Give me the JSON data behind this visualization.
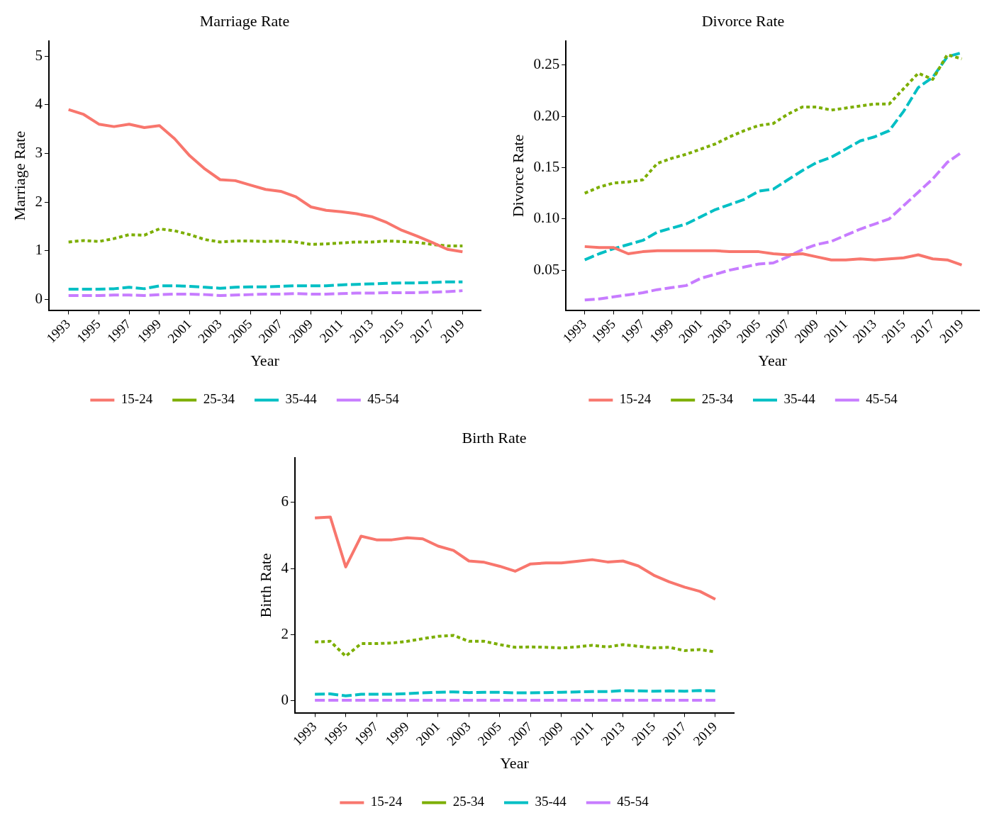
{
  "chart_data": [
    {
      "type": "line",
      "title": "Marriage Rate",
      "xlabel": "Year",
      "ylabel": "Marriage Rate",
      "legend": "bottom",
      "x": [
        1993,
        1994,
        1995,
        1996,
        1997,
        1998,
        1999,
        2000,
        2001,
        2002,
        2003,
        2004,
        2005,
        2006,
        2007,
        2008,
        2009,
        2010,
        2011,
        2012,
        2013,
        2014,
        2015,
        2016,
        2017,
        2018,
        2019
      ],
      "xlim": [
        1991.7,
        2020.2
      ],
      "xticks": [
        1993,
        1995,
        1997,
        1999,
        2001,
        2003,
        2005,
        2007,
        2009,
        2011,
        2013,
        2015,
        2017,
        2019
      ],
      "ylim": [
        -0.22,
        5.3
      ],
      "yticks": [
        0,
        1,
        2,
        3,
        4,
        5
      ],
      "series": [
        {
          "name": "15-24",
          "color": "#f8766d",
          "line_style": "solid",
          "values": [
            3.9,
            3.8,
            3.6,
            3.55,
            3.6,
            3.53,
            3.57,
            3.3,
            2.95,
            2.68,
            2.46,
            2.44,
            2.35,
            2.26,
            2.22,
            2.11,
            1.9,
            1.83,
            1.8,
            1.76,
            1.7,
            1.58,
            1.42,
            1.3,
            1.17,
            1.03,
            0.98
          ]
        },
        {
          "name": "25-34",
          "color": "#7cae00",
          "line_style": "dotted",
          "values": [
            1.18,
            1.21,
            1.19,
            1.25,
            1.33,
            1.32,
            1.45,
            1.41,
            1.33,
            1.23,
            1.18,
            1.2,
            1.2,
            1.19,
            1.2,
            1.18,
            1.13,
            1.14,
            1.16,
            1.18,
            1.18,
            1.2,
            1.19,
            1.17,
            1.13,
            1.1,
            1.1
          ]
        },
        {
          "name": "35-44",
          "color": "#00bfc4",
          "line_style": "dashed",
          "values": [
            0.21,
            0.21,
            0.21,
            0.22,
            0.25,
            0.22,
            0.28,
            0.28,
            0.27,
            0.25,
            0.23,
            0.25,
            0.26,
            0.26,
            0.27,
            0.28,
            0.28,
            0.28,
            0.3,
            0.31,
            0.32,
            0.33,
            0.34,
            0.34,
            0.35,
            0.36,
            0.36
          ]
        },
        {
          "name": "45-54",
          "color": "#c77cff",
          "line_style": "dashed",
          "values": [
            0.08,
            0.08,
            0.08,
            0.09,
            0.09,
            0.08,
            0.1,
            0.11,
            0.11,
            0.1,
            0.08,
            0.09,
            0.1,
            0.11,
            0.11,
            0.12,
            0.11,
            0.11,
            0.12,
            0.13,
            0.13,
            0.14,
            0.14,
            0.14,
            0.15,
            0.16,
            0.18
          ]
        }
      ]
    },
    {
      "type": "line",
      "title": "Divorce Rate",
      "xlabel": "Year",
      "ylabel": "Divorce Rate",
      "legend": "bottom",
      "x": [
        1993,
        1994,
        1995,
        1996,
        1997,
        1998,
        1999,
        2000,
        2001,
        2002,
        2003,
        2004,
        2005,
        2006,
        2007,
        2008,
        2009,
        2010,
        2011,
        2012,
        2013,
        2014,
        2015,
        2016,
        2017,
        2018,
        2019
      ],
      "xlim": [
        1991.7,
        2020.2
      ],
      "xticks": [
        1993,
        1995,
        1997,
        1999,
        2001,
        2003,
        2005,
        2007,
        2009,
        2011,
        2013,
        2015,
        2017,
        2019
      ],
      "ylim": [
        0.011,
        0.273
      ],
      "yticks": [
        {
          "value": 0.05,
          "label": "0.05"
        },
        {
          "value": 0.1,
          "label": "0.10"
        },
        {
          "value": 0.15,
          "label": "0.15"
        },
        {
          "value": 0.2,
          "label": "0.20"
        },
        {
          "value": 0.25,
          "label": "0.25"
        }
      ],
      "series": [
        {
          "name": "15-24",
          "color": "#f8766d",
          "line_style": "solid",
          "values": [
            0.073,
            0.072,
            0.072,
            0.066,
            0.068,
            0.069,
            0.069,
            0.069,
            0.069,
            0.069,
            0.068,
            0.068,
            0.068,
            0.066,
            0.065,
            0.066,
            0.063,
            0.06,
            0.06,
            0.061,
            0.06,
            0.061,
            0.062,
            0.065,
            0.061,
            0.06,
            0.055
          ]
        },
        {
          "name": "25-34",
          "color": "#7cae00",
          "line_style": "dotted",
          "values": [
            0.125,
            0.131,
            0.135,
            0.136,
            0.138,
            0.154,
            0.159,
            0.163,
            0.168,
            0.173,
            0.18,
            0.186,
            0.191,
            0.193,
            0.202,
            0.209,
            0.209,
            0.206,
            0.208,
            0.21,
            0.212,
            0.212,
            0.227,
            0.242,
            0.236,
            0.26,
            0.256
          ]
        },
        {
          "name": "35-44",
          "color": "#00bfc4",
          "line_style": "dashed",
          "values": [
            0.06,
            0.066,
            0.071,
            0.075,
            0.079,
            0.087,
            0.091,
            0.095,
            0.102,
            0.109,
            0.114,
            0.119,
            0.127,
            0.129,
            0.138,
            0.147,
            0.155,
            0.16,
            0.168,
            0.176,
            0.18,
            0.186,
            0.205,
            0.228,
            0.238,
            0.258,
            0.262
          ]
        },
        {
          "name": "45-54",
          "color": "#c77cff",
          "line_style": "dashed",
          "values": [
            0.021,
            0.022,
            0.024,
            0.026,
            0.028,
            0.031,
            0.033,
            0.035,
            0.042,
            0.046,
            0.05,
            0.053,
            0.056,
            0.057,
            0.063,
            0.07,
            0.075,
            0.078,
            0.084,
            0.09,
            0.095,
            0.1,
            0.113,
            0.126,
            0.139,
            0.155,
            0.165
          ]
        }
      ]
    },
    {
      "type": "line",
      "title": "Birth Rate",
      "xlabel": "Year",
      "ylabel": "Birth Rate",
      "legend": "bottom",
      "x": [
        1993,
        1994,
        1995,
        1996,
        1997,
        1998,
        1999,
        2000,
        2001,
        2002,
        2003,
        2004,
        2005,
        2006,
        2007,
        2008,
        2009,
        2010,
        2011,
        2012,
        2013,
        2014,
        2015,
        2016,
        2017,
        2018,
        2019
      ],
      "xlim": [
        1991.7,
        2020.2
      ],
      "xticks": [
        1993,
        1995,
        1997,
        1999,
        2001,
        2003,
        2005,
        2007,
        2009,
        2011,
        2013,
        2015,
        2017,
        2019
      ],
      "ylim": [
        -0.36,
        7.34
      ],
      "yticks": [
        0,
        2,
        4,
        6
      ],
      "series": [
        {
          "name": "15-24",
          "color": "#f8766d",
          "line_style": "solid",
          "values": [
            5.53,
            5.56,
            4.05,
            4.98,
            4.87,
            4.87,
            4.93,
            4.9,
            4.68,
            4.55,
            4.23,
            4.19,
            4.07,
            3.92,
            4.14,
            4.17,
            4.17,
            4.22,
            4.27,
            4.2,
            4.23,
            4.08,
            3.8,
            3.6,
            3.44,
            3.31,
            3.07
          ]
        },
        {
          "name": "25-34",
          "color": "#7cae00",
          "line_style": "dotted",
          "values": [
            1.78,
            1.8,
            1.35,
            1.73,
            1.73,
            1.75,
            1.8,
            1.88,
            1.95,
            1.98,
            1.8,
            1.8,
            1.7,
            1.62,
            1.63,
            1.62,
            1.6,
            1.63,
            1.68,
            1.63,
            1.7,
            1.65,
            1.6,
            1.62,
            1.52,
            1.55,
            1.48
          ]
        },
        {
          "name": "35-44",
          "color": "#00bfc4",
          "line_style": "dashed",
          "values": [
            0.2,
            0.21,
            0.15,
            0.2,
            0.2,
            0.2,
            0.22,
            0.24,
            0.26,
            0.27,
            0.25,
            0.26,
            0.26,
            0.24,
            0.24,
            0.25,
            0.26,
            0.27,
            0.28,
            0.28,
            0.31,
            0.3,
            0.29,
            0.3,
            0.29,
            0.31,
            0.3
          ]
        },
        {
          "name": "45-54",
          "color": "#c77cff",
          "line_style": "dashed",
          "values": [
            0.02,
            0.02,
            0.02,
            0.02,
            0.02,
            0.02,
            0.02,
            0.02,
            0.02,
            0.02,
            0.02,
            0.02,
            0.02,
            0.02,
            0.02,
            0.02,
            0.02,
            0.02,
            0.02,
            0.02,
            0.02,
            0.02,
            0.02,
            0.02,
            0.02,
            0.02,
            0.02
          ]
        }
      ]
    }
  ]
}
